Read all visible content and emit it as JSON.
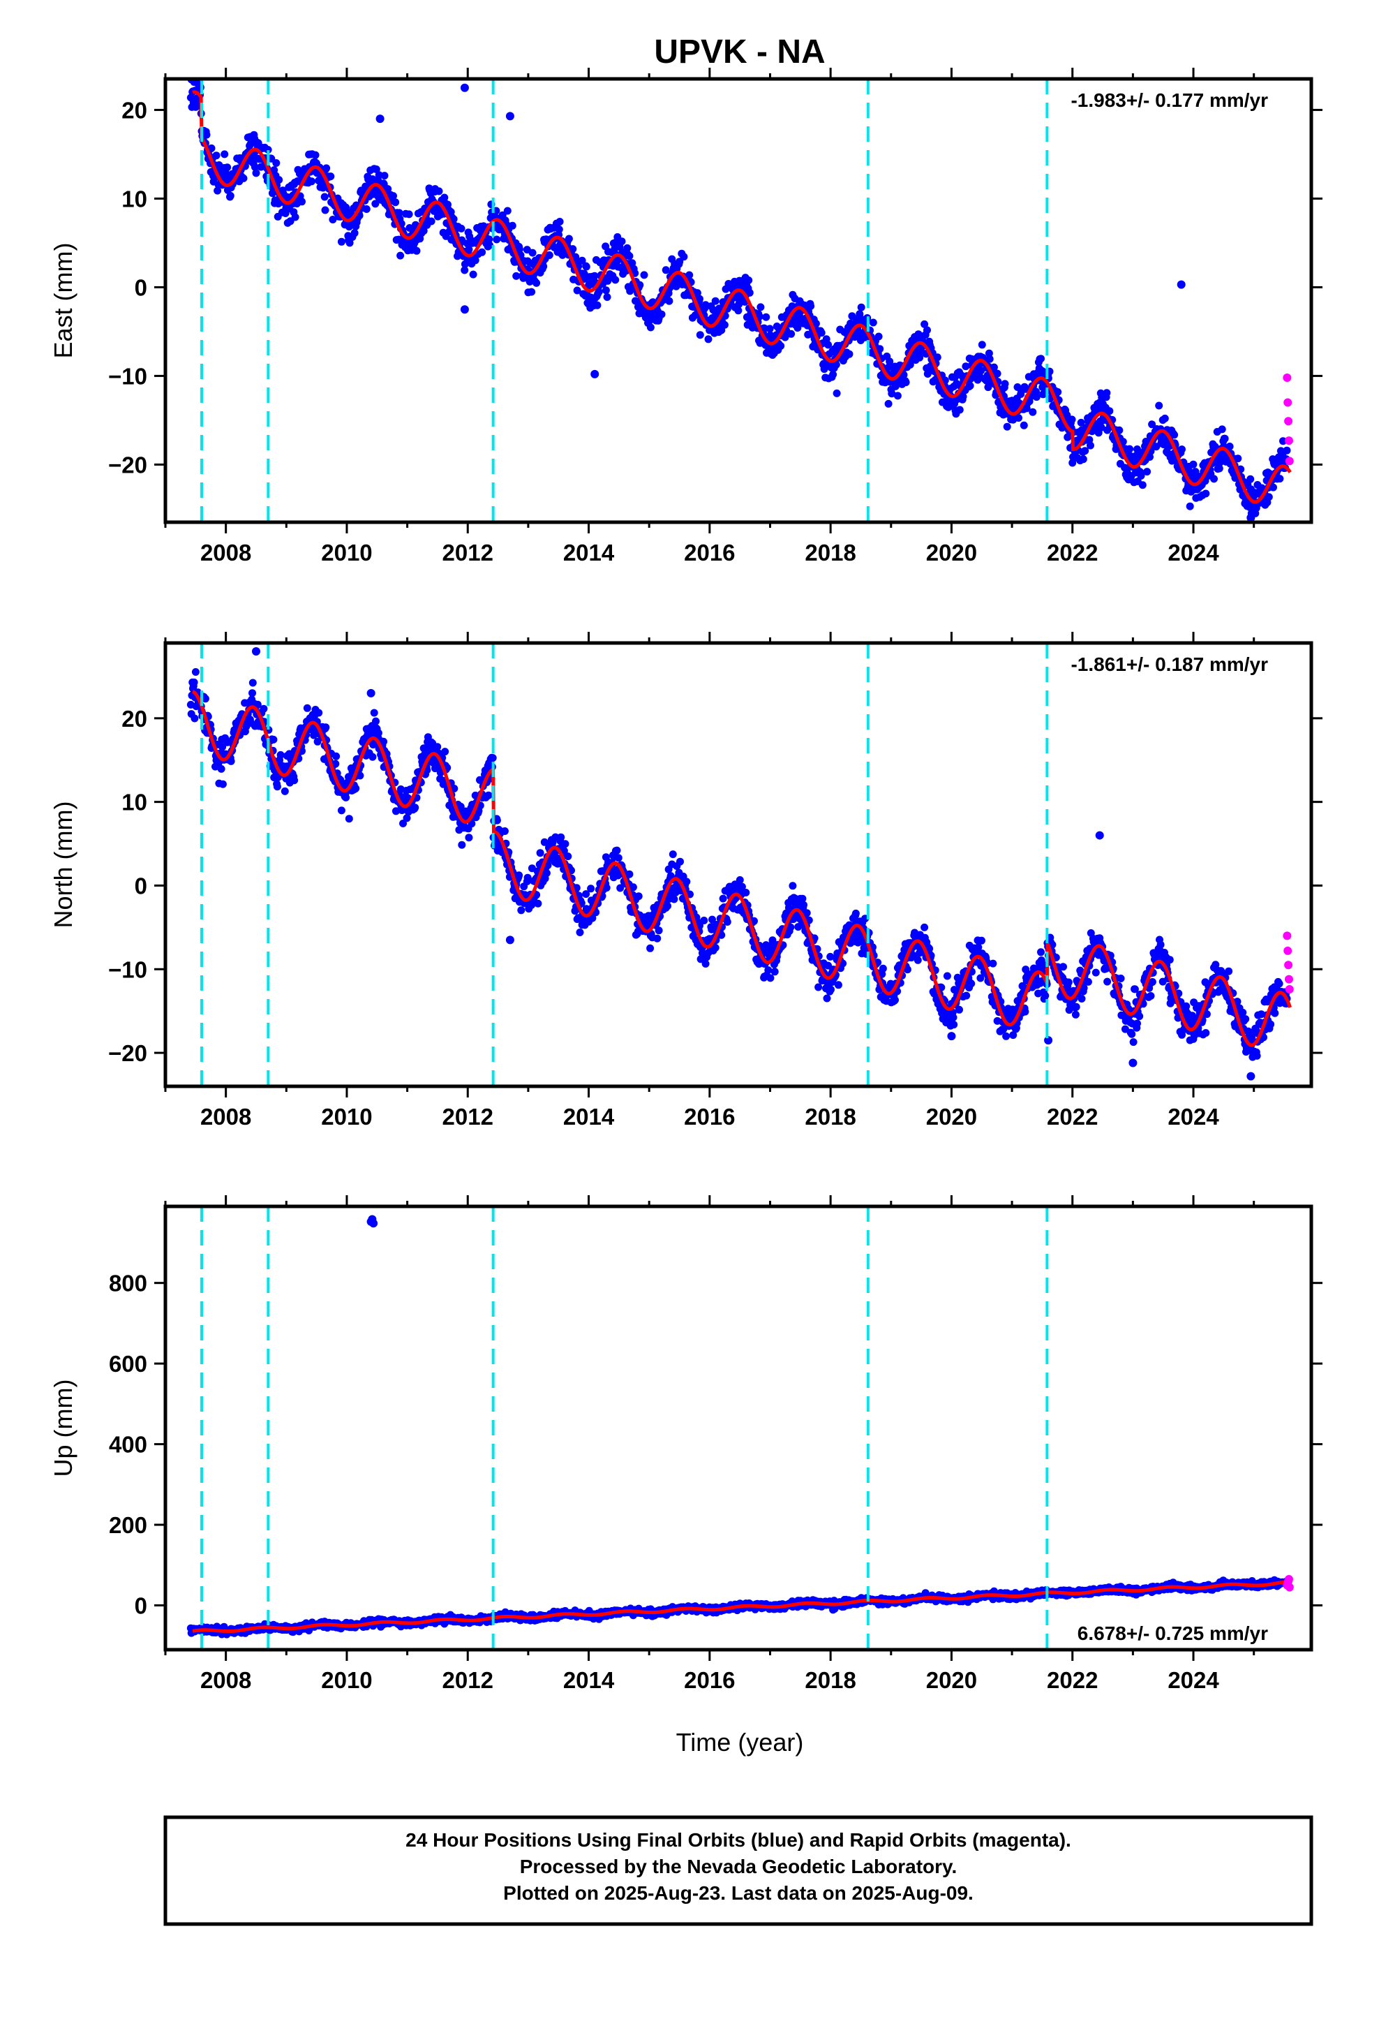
{
  "title": "UPVK - NA",
  "x_axis_label": "Time (year)",
  "colors": {
    "final_orbits": "#0000ff",
    "rapid_orbits": "#ff00ff",
    "model_fit": "#ff0000",
    "offset_lines": "#00e5ee",
    "frame": "#000000"
  },
  "footer": {
    "line1": "24 Hour Positions Using Final Orbits (blue) and Rapid Orbits (magenta).",
    "line2": "Processed by the Nevada Geodetic Laboratory.",
    "line3": "Plotted on 2025-Aug-23. Last data on 2025-Aug-09."
  },
  "chart_data": [
    {
      "type": "scatter",
      "component": "East",
      "ylabel": "East (mm)",
      "rate_label": "-1.983+/- 0.177 mm/yr",
      "xlim": [
        2007.0,
        2025.95
      ],
      "ylim": [
        -26.5,
        23.5
      ],
      "x_ticks": [
        2008,
        2010,
        2012,
        2014,
        2016,
        2018,
        2020,
        2022,
        2024
      ],
      "y_ticks": [
        -20,
        -10,
        0,
        10,
        20
      ],
      "offset_epochs": [
        2007.6,
        2008.7,
        2012.42,
        2018.62,
        2021.58
      ],
      "model": {
        "trend_start": 2007.5,
        "trend_start_value": 19.5,
        "rate": -1.983,
        "annual_amplitude": 2.5,
        "annual_phase_peak": 0.5,
        "steps": [
          [
            2007.6,
            -4.5
          ],
          [
            2022.0,
            -2.0
          ]
        ]
      },
      "outliers": [
        [
          2011.95,
          22.5
        ],
        [
          2012.7,
          19.3
        ],
        [
          2010.55,
          19.0
        ],
        [
          2011.95,
          -2.5
        ],
        [
          2014.1,
          -9.8
        ],
        [
          2023.8,
          0.3
        ],
        [
          2024.95,
          -26.0
        ],
        [
          2024.9,
          -24.5
        ]
      ],
      "rapid_points": [
        [
          2025.55,
          -10.2
        ],
        [
          2025.56,
          -13.0
        ],
        [
          2025.57,
          -15.1
        ],
        [
          2025.58,
          -17.3
        ],
        [
          2025.59,
          -19.6
        ]
      ]
    },
    {
      "type": "scatter",
      "component": "North",
      "ylabel": "North (mm)",
      "rate_label": "-1.861+/- 0.187 mm/yr",
      "xlim": [
        2007.0,
        2025.95
      ],
      "ylim": [
        -24.0,
        29.0
      ],
      "x_ticks": [
        2008,
        2010,
        2012,
        2014,
        2016,
        2018,
        2020,
        2022,
        2024
      ],
      "y_ticks": [
        -20,
        -10,
        0,
        10,
        20
      ],
      "offset_epochs": [
        2007.6,
        2008.7,
        2012.42,
        2018.62,
        2021.58
      ],
      "model": {
        "trend_start": 2007.5,
        "trend_start_value": 19.5,
        "rate": -1.861,
        "annual_amplitude": 3.6,
        "annual_phase_peak": 0.45,
        "steps": [
          [
            2012.42,
            -7.5
          ],
          [
            2021.58,
            5.0
          ]
        ]
      },
      "outliers": [
        [
          2008.5,
          28.0
        ],
        [
          2010.4,
          23.0
        ],
        [
          2012.7,
          -6.5
        ],
        [
          2013.95,
          -3.5
        ],
        [
          2020.0,
          -18.0
        ],
        [
          2021.6,
          -18.5
        ],
        [
          2023.0,
          -21.2
        ],
        [
          2024.95,
          -22.8
        ],
        [
          2022.45,
          6.0
        ]
      ],
      "rapid_points": [
        [
          2025.55,
          -6.0
        ],
        [
          2025.56,
          -7.8
        ],
        [
          2025.57,
          -9.5
        ],
        [
          2025.58,
          -11.2
        ],
        [
          2025.59,
          -12.4
        ]
      ]
    },
    {
      "type": "scatter",
      "component": "Up",
      "ylabel": "Up (mm)",
      "rate_label": "6.678+/- 0.725 mm/yr",
      "xlim": [
        2007.0,
        2025.95
      ],
      "ylim": [
        -110.0,
        990.0
      ],
      "x_ticks": [
        2008,
        2010,
        2012,
        2014,
        2016,
        2018,
        2020,
        2022,
        2024
      ],
      "y_ticks": [
        0,
        200,
        400,
        600,
        800
      ],
      "offset_epochs": [
        2007.6,
        2008.7,
        2012.42,
        2018.62,
        2021.58
      ],
      "model": {
        "trend_start": 2007.5,
        "trend_start_value": -65.0,
        "rate": 6.678,
        "annual_amplitude": 3.0,
        "annual_phase_peak": 0.6,
        "steps": []
      },
      "outliers": [
        [
          2010.4,
          952.0
        ],
        [
          2010.42,
          958.0
        ],
        [
          2010.44,
          948.0
        ]
      ],
      "rapid_points": [
        [
          2025.55,
          50.0
        ],
        [
          2025.56,
          55.0
        ],
        [
          2025.57,
          60.0
        ],
        [
          2025.58,
          65.0
        ],
        [
          2025.59,
          45.0
        ]
      ]
    }
  ]
}
